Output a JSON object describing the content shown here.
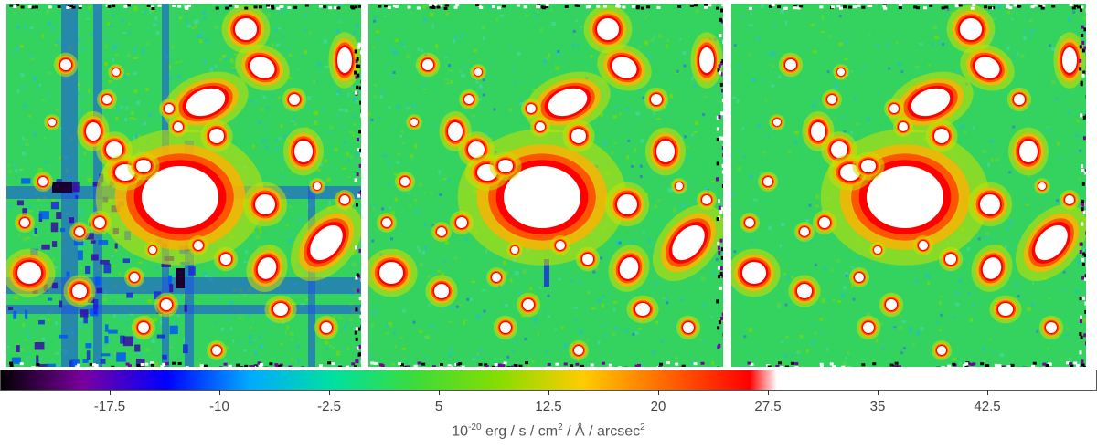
{
  "image_title": "",
  "colorbar": {
    "ticks": [
      "-17.5",
      "-10",
      "-2.5",
      "5",
      "12.5",
      "20",
      "27.5",
      "35",
      "42.5"
    ],
    "tick_values": [
      -17.5,
      -10,
      -2.5,
      5,
      12.5,
      20,
      27.5,
      35,
      42.5
    ],
    "range": [
      -25,
      50
    ],
    "stops": [
      "#000000",
      "#7a00a0",
      "#0000ff",
      "#00aaff",
      "#00e0a0",
      "#3ddc38",
      "#88dd00",
      "#ffcc00",
      "#ff6600",
      "#ff0000",
      "#ffffff"
    ],
    "unit_base": "10",
    "unit_exp": "-20",
    "unit_mid1": " erg / s / cm",
    "unit_exp2": "2",
    "unit_mid2": " / Å / arcsec",
    "unit_exp3": "2"
  },
  "panels": [
    {
      "name": "panel-1",
      "noise": "high"
    },
    {
      "name": "panel-2",
      "noise": "medium"
    },
    {
      "name": "panel-3",
      "noise": "low"
    }
  ]
}
